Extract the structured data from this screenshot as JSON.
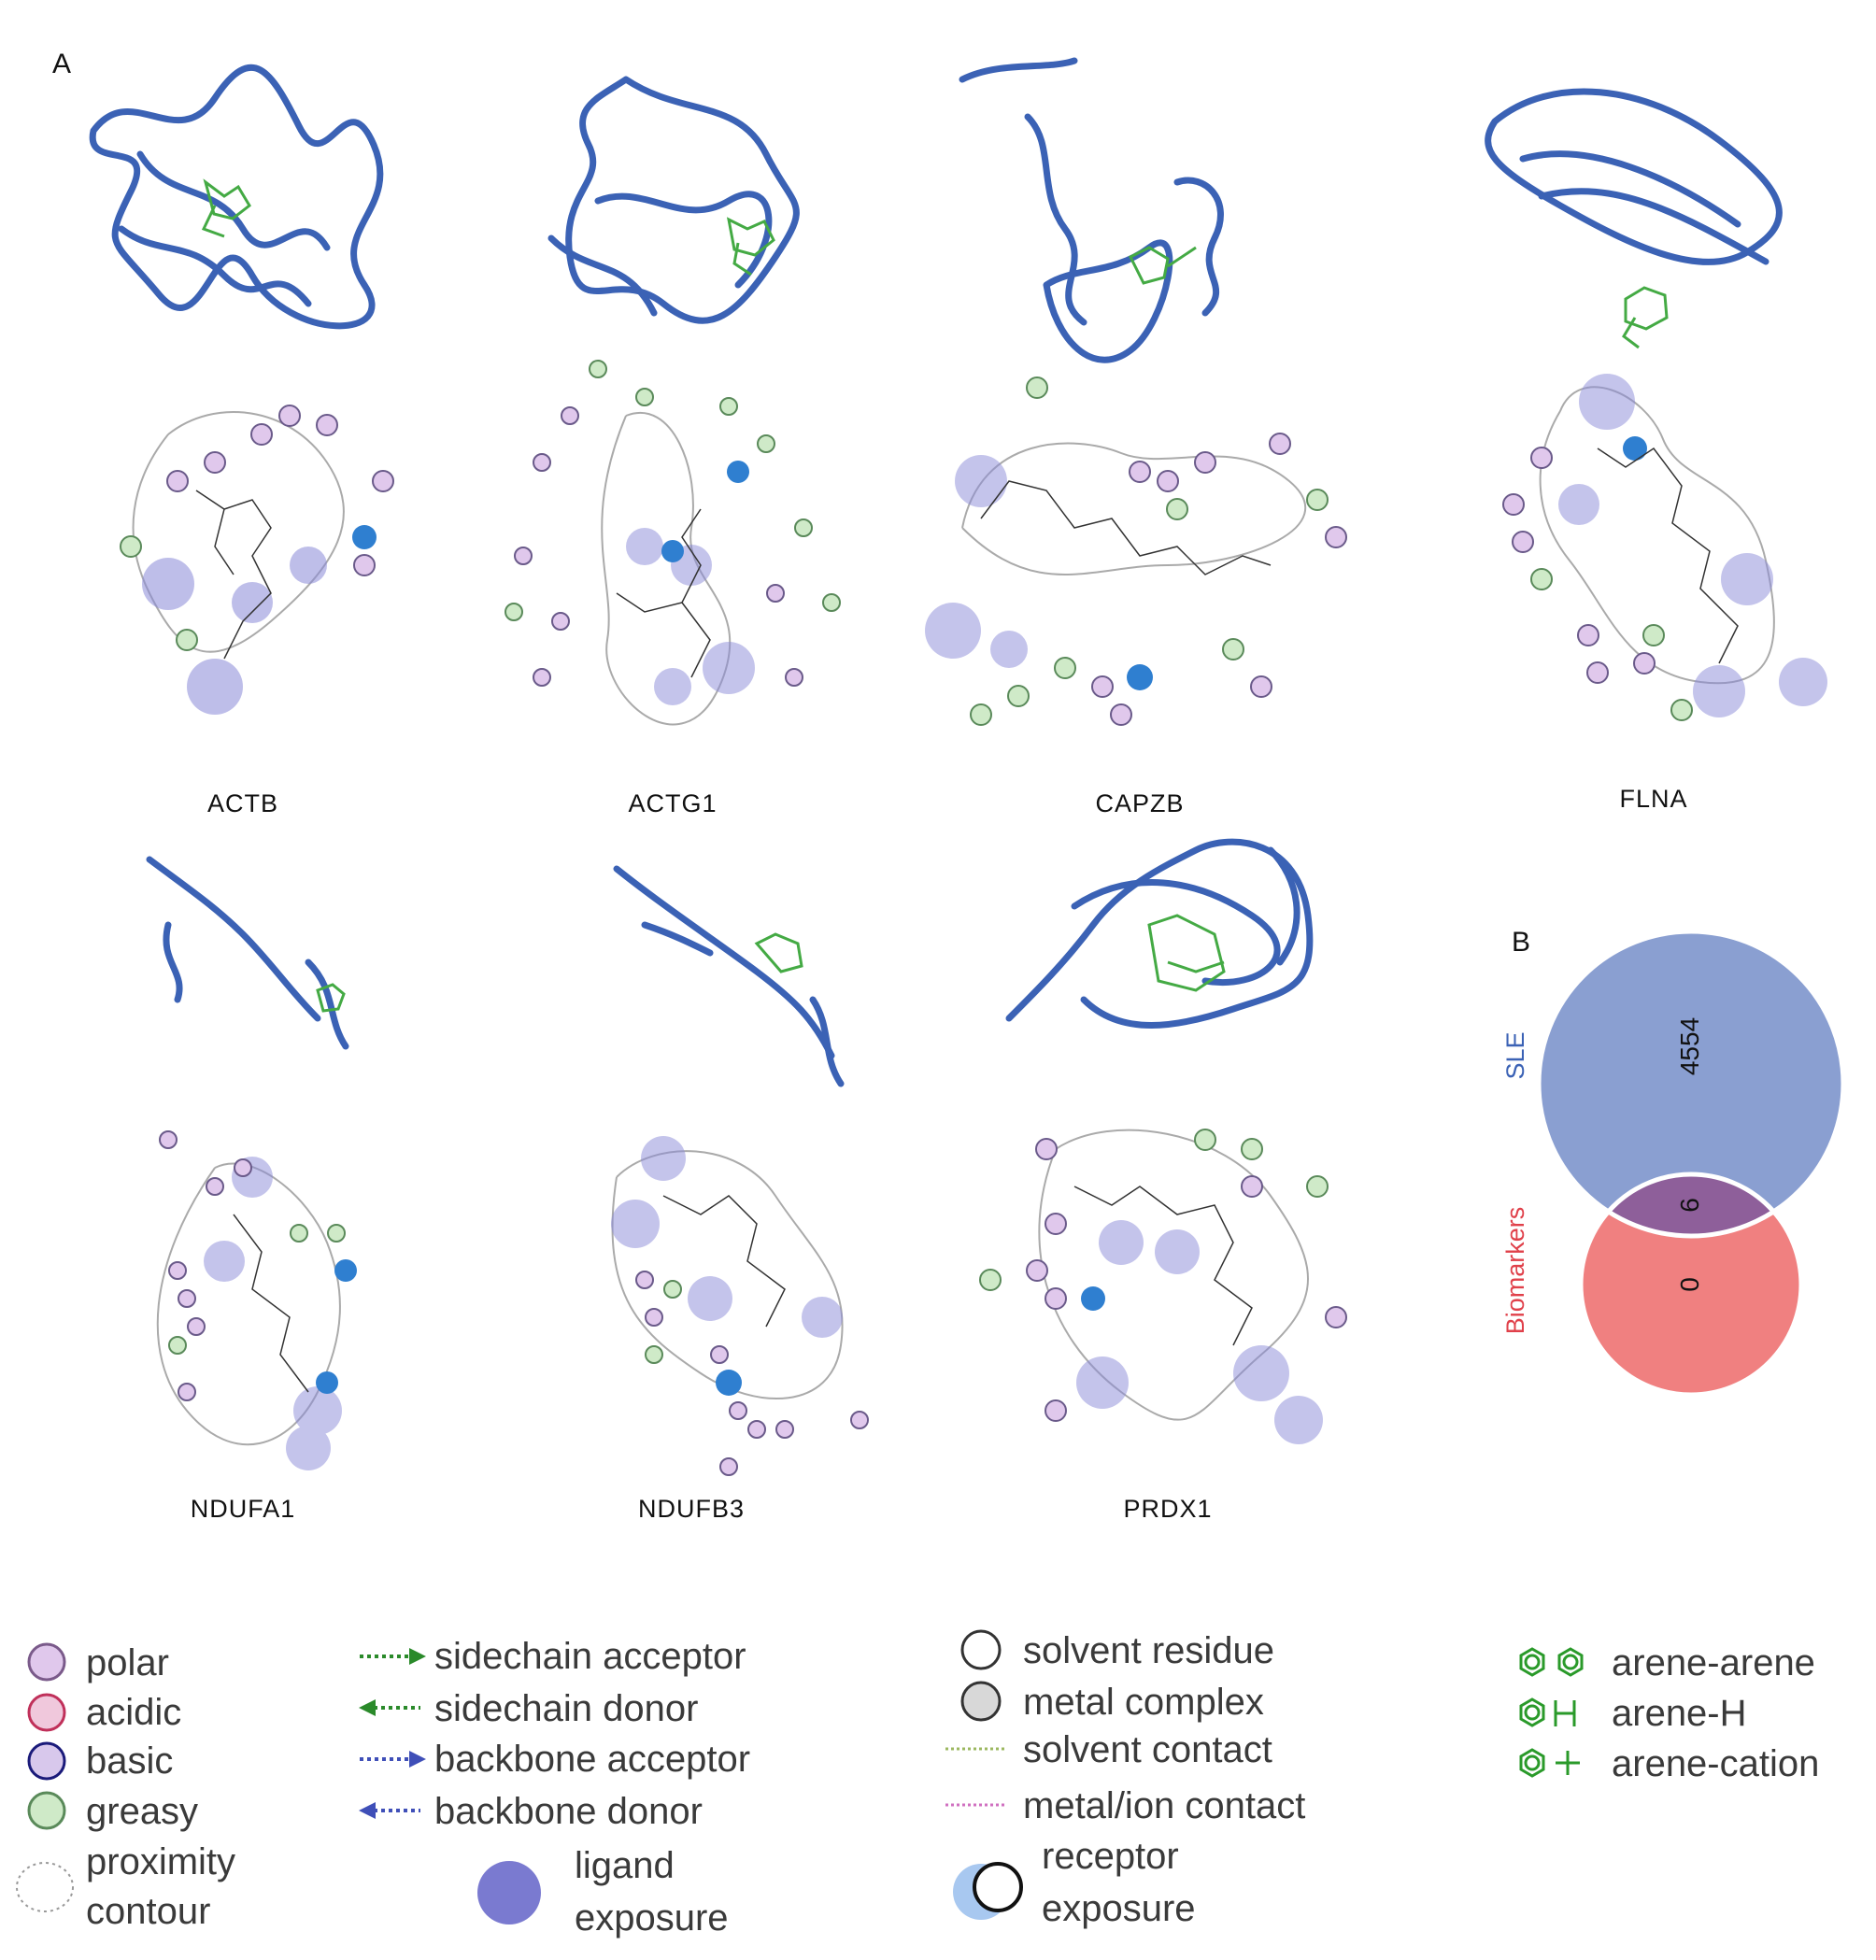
{
  "panel_a_letter": "A",
  "panel_b_letter": "B",
  "proteins": [
    "ACTB",
    "ACTG1",
    "CAPZB",
    "FLNA",
    "NDUFA1",
    "NDUFB3",
    "PRDX1"
  ],
  "venn": {
    "sets": [
      {
        "label": "SLE",
        "only": "4554",
        "color": "#8a9fd1"
      },
      {
        "label": "Biomarkers",
        "only": "0",
        "color": "#f08080"
      }
    ],
    "overlap": "6",
    "overlap_color": "#8e5f9a"
  },
  "legend": {
    "residues": [
      "polar",
      "acidic",
      "basic",
      "greasy"
    ],
    "proximity": [
      "proximity",
      "contour"
    ],
    "interactions": [
      "sidechain acceptor",
      "sidechain donor",
      "backbone acceptor",
      "backbone donor"
    ],
    "ligand_exposure": [
      "ligand",
      "exposure"
    ],
    "solvent": [
      "solvent residue",
      "metal complex",
      "solvent contact",
      "metal/ion contact"
    ],
    "receptor_exposure": [
      "receptor",
      "exposure"
    ],
    "arene": [
      "arene-arene",
      "arene-H",
      "arene-cation"
    ],
    "colors": {
      "ribbon": "#3b62b5",
      "ligand": "#44aa44",
      "exposure": "#4d4dc0",
      "arrow_green": "#2a8a2a",
      "arrow_blue": "#3f4fb8"
    }
  }
}
